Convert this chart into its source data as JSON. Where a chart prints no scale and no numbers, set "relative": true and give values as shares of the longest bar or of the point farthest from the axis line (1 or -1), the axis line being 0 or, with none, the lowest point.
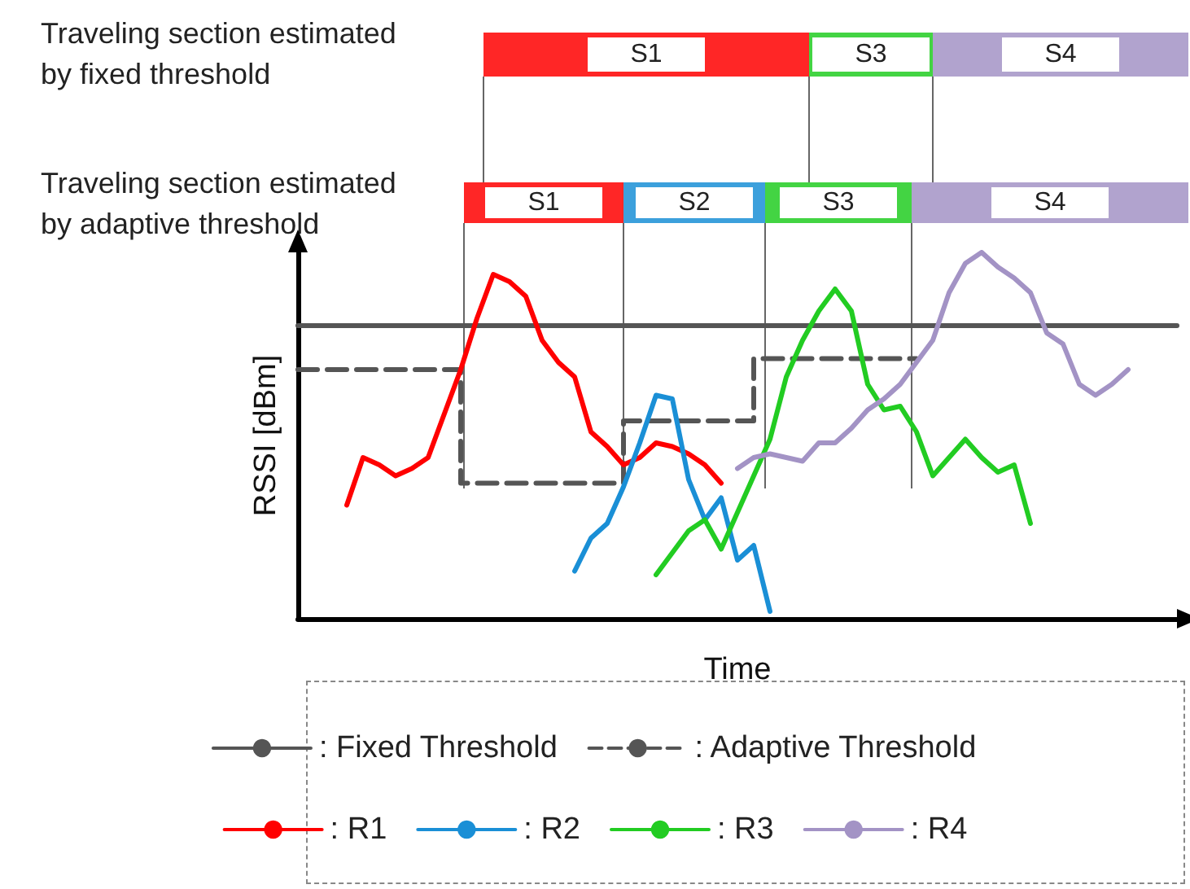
{
  "chart_data": {
    "type": "line",
    "relative": true,
    "xlabel": "Time",
    "ylabel": "RSSI [dBm]",
    "marker": "none",
    "grid": false,
    "legend": "bottom",
    "categories": [
      null,
      null,
      null,
      null,
      null,
      null,
      null,
      null,
      null,
      null,
      null,
      null,
      null,
      null,
      null,
      null,
      null,
      null,
      null,
      null,
      null,
      null,
      null,
      null,
      null,
      null,
      null,
      null,
      null,
      null,
      null,
      null,
      null,
      null,
      null,
      null,
      null,
      null,
      null,
      null,
      null,
      null,
      null,
      null,
      null,
      null,
      null,
      null,
      null,
      null,
      null,
      null,
      null,
      null,
      null
    ],
    "annotations": [
      "Traveling section estimated by fixed threshold",
      "Traveling section estimated by adaptive threshold",
      "S1",
      "S3",
      "S4",
      "S1",
      "S2",
      "S3",
      "S4"
    ],
    "series": [
      {
        "name": ": Fixed Threshold",
        "color": "#555555",
        "values": [
          0.8,
          0.8,
          0.8,
          0.8,
          0.8,
          0.8,
          0.8,
          0.8,
          0.8,
          0.8,
          0.8,
          0.8,
          0.8,
          0.8,
          0.8,
          0.8,
          0.8,
          0.8,
          0.8,
          0.8,
          0.8,
          0.8,
          0.8,
          0.8,
          0.8,
          0.8,
          0.8,
          0.8,
          0.8,
          0.8,
          0.8,
          0.8,
          0.8,
          0.8,
          0.8,
          0.8,
          0.8,
          0.8,
          0.8,
          0.8,
          0.8,
          0.8,
          0.8,
          0.8,
          0.8,
          0.8,
          0.8,
          0.8,
          0.8,
          0.8,
          0.8,
          0.8,
          0.8,
          0.8,
          0.8
        ]
      },
      {
        "name": ": Adaptive Threshold",
        "type": "step",
        "line_style": "dashed",
        "color": "#555555",
        "values": [
          0.68,
          0.68,
          0.68,
          0.68,
          0.68,
          0.68,
          0.68,
          0.68,
          0.68,
          0.68,
          0.68,
          0.37,
          0.37,
          0.37,
          0.37,
          0.37,
          0.37,
          0.37,
          0.37,
          0.37,
          0.37,
          0.54,
          0.54,
          0.54,
          0.54,
          0.54,
          0.54,
          0.54,
          0.54,
          0.71,
          0.71,
          0.71,
          0.71,
          0.71,
          0.71,
          0.71,
          0.71,
          0.71,
          0.71,
          null,
          null,
          null,
          null,
          null,
          null,
          null,
          null,
          null,
          null,
          null,
          null,
          null,
          null,
          null,
          null
        ]
      },
      {
        "name": ": R1",
        "color": "#ff0000",
        "values": [
          null,
          null,
          null,
          0.31,
          0.44,
          0.42,
          0.39,
          0.41,
          0.44,
          0.56,
          0.68,
          0.82,
          0.94,
          0.92,
          0.88,
          0.76,
          0.7,
          0.66,
          0.51,
          0.47,
          0.42,
          0.44,
          0.48,
          0.47,
          0.45,
          0.42,
          0.37,
          null,
          null,
          null,
          null,
          null,
          null,
          null,
          null,
          null,
          null,
          null,
          null,
          null,
          null,
          null,
          null,
          null,
          null,
          null,
          null,
          null,
          null,
          null,
          null,
          null,
          null,
          null,
          null
        ]
      },
      {
        "name": ": R2",
        "color": "#1a8fd6",
        "values": [
          null,
          null,
          null,
          null,
          null,
          null,
          null,
          null,
          null,
          null,
          null,
          null,
          null,
          null,
          null,
          null,
          null,
          0.13,
          0.22,
          0.26,
          0.36,
          0.48,
          0.61,
          0.6,
          0.38,
          0.27,
          0.33,
          0.16,
          0.2,
          0.02,
          null,
          null,
          null,
          null,
          null,
          null,
          null,
          null,
          null,
          null,
          null,
          null,
          null,
          null,
          null,
          null,
          null,
          null,
          null,
          null,
          null,
          null,
          null,
          null,
          null
        ]
      },
      {
        "name": ": R3",
        "color": "#22cc22",
        "values": [
          null,
          null,
          null,
          null,
          null,
          null,
          null,
          null,
          null,
          null,
          null,
          null,
          null,
          null,
          null,
          null,
          null,
          null,
          null,
          null,
          null,
          null,
          0.12,
          0.18,
          0.24,
          0.27,
          0.19,
          0.29,
          0.39,
          0.49,
          0.66,
          0.76,
          0.84,
          0.9,
          0.84,
          0.64,
          0.57,
          0.58,
          0.51,
          0.39,
          0.44,
          0.49,
          0.44,
          0.4,
          0.42,
          0.26,
          null,
          null,
          null,
          null,
          null,
          null,
          null,
          null,
          null
        ]
      },
      {
        "name": ": R4",
        "color": "#a393c5",
        "values": [
          null,
          null,
          null,
          null,
          null,
          null,
          null,
          null,
          null,
          null,
          null,
          null,
          null,
          null,
          null,
          null,
          null,
          null,
          null,
          null,
          null,
          null,
          null,
          null,
          null,
          null,
          null,
          0.41,
          0.44,
          0.45,
          0.44,
          0.43,
          0.48,
          0.48,
          0.52,
          0.57,
          0.6,
          0.64,
          0.7,
          0.76,
          0.89,
          0.97,
          1.0,
          0.96,
          0.93,
          0.89,
          0.78,
          0.75,
          0.64,
          0.61,
          0.64,
          0.68,
          null,
          null,
          null
        ]
      }
    ]
  }
}
